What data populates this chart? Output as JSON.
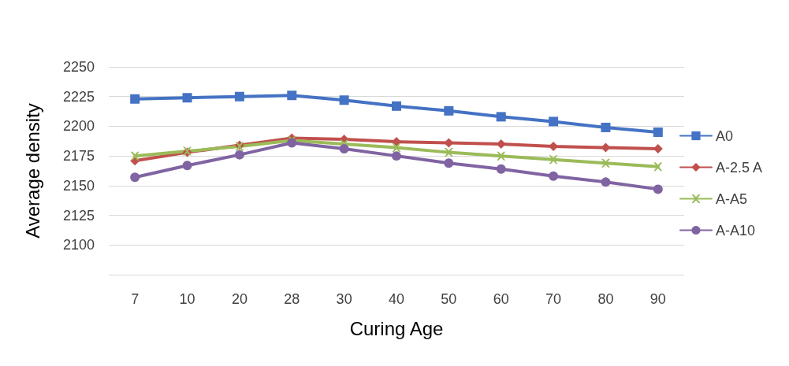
{
  "chart_data": {
    "type": "line",
    "xlabel": "Curing Age",
    "ylabel": "Average density",
    "categories": [
      "7",
      "10",
      "20",
      "28",
      "30",
      "40",
      "50",
      "60",
      "70",
      "80",
      "90"
    ],
    "ylim": [
      2075,
      2250
    ],
    "yticks": [
      {
        "value": 2075,
        "label": null
      },
      2100,
      2125,
      2150,
      2175,
      2200,
      2225,
      2250
    ],
    "grid": "y",
    "legend": "right",
    "line_style": "solid",
    "series": [
      {
        "name": "A0",
        "color": "#4472c4",
        "marker": "square",
        "values": [
          2223,
          2224,
          2225,
          2226,
          2222,
          2217,
          2213,
          2208,
          2204,
          2199,
          2195
        ]
      },
      {
        "name": "A-2.5 A",
        "color": "#c0504d",
        "marker": "diamond",
        "values": [
          2171,
          2178,
          2184,
          2190,
          2189,
          2187,
          2186,
          2185,
          2183,
          2182,
          2181
        ]
      },
      {
        "name": "A-A5",
        "color": "#9bbb59",
        "marker": "cross",
        "values": [
          2175,
          2179,
          2183,
          2188,
          2185,
          2182,
          2178,
          2175,
          2172,
          2169,
          2166
        ]
      },
      {
        "name": "A-A10",
        "color": "#8064a2",
        "marker": "circle",
        "values": [
          2157,
          2167,
          2176,
          2186,
          2181,
          2175,
          2169,
          2164,
          2158,
          2153,
          2147
        ]
      }
    ]
  }
}
